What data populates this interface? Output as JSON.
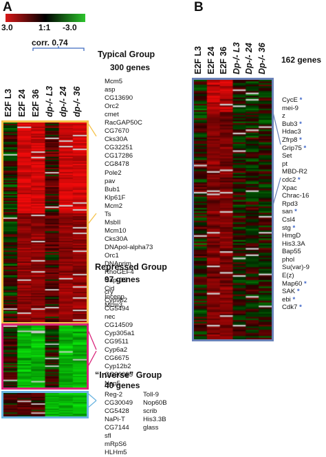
{
  "panels": {
    "a": "A",
    "b": "B"
  },
  "color_scale": {
    "left": "3.0",
    "mid": "1:1",
    "right": "-3.0",
    "colors": [
      "#d81818",
      "#000000",
      "#2cc42c"
    ]
  },
  "correlation": "corr. 0.74",
  "panel_a": {
    "columns": [
      {
        "label": "E2F L3",
        "italic": false
      },
      {
        "label": "E2F 24",
        "italic": false
      },
      {
        "label": "E2F 36",
        "italic": false
      },
      {
        "label": "dp-/- L3",
        "italic": true
      },
      {
        "label": "dp-/- 24",
        "italic": true
      },
      {
        "label": "dp-/- 36",
        "italic": true
      }
    ],
    "groups": [
      {
        "title": "Typical Group",
        "count": "300 genes",
        "border_color": "#f5c24a",
        "genes": [
          "Mcm5",
          "asp",
          "CG13690",
          "Orc2",
          "cmet",
          "RacGAP50C",
          "CG7670",
          "Cks30A",
          "CG32251",
          "CG17286",
          "CG8478",
          "Pole2",
          "pav",
          "Bub1",
          "Klp61F",
          "Mcm2",
          "Ts",
          "MsbII",
          "Mcm10",
          "Cks30A",
          "DNApol-alpha73",
          "Orc1",
          "DNAprim",
          "RhoGEF4",
          "Cap-D2",
          "Cid",
          "Incenp",
          "Mcm3"
        ]
      },
      {
        "title": "Repressed Group",
        "count": "97 genes",
        "border_color": "#d9247a",
        "genes": [
          "cry",
          "Cyp9b2",
          "CG5494",
          "nec",
          "CG14509",
          "Cyp305a1",
          "CG9511",
          "Cyp6a2",
          "CG6675",
          "Cyp12b2",
          "CG30095",
          "Nep5"
        ]
      },
      {
        "title": "“Inverse” Group",
        "count": "40 genes",
        "border_color": "#6ab4e0",
        "genes_col1": [
          "Reg-2",
          "CG30049",
          "CG5428",
          "NaPi-T",
          "CG7144",
          "sfl",
          "mRpS6",
          "HLHm5"
        ],
        "genes_col2": [
          "Toll-9",
          "Nop60B",
          "scrib",
          "His3.3B",
          "glass"
        ]
      }
    ]
  },
  "panel_b": {
    "columns": [
      {
        "label": "E2F L3",
        "italic": false
      },
      {
        "label": "E2F 24",
        "italic": false
      },
      {
        "label": "E2F 36",
        "italic": false
      },
      {
        "label": "Dp-/- L3",
        "italic": true
      },
      {
        "label": "Dp-/- 24",
        "italic": true
      },
      {
        "label": "Dp-/- 36",
        "italic": true
      }
    ],
    "count": "162 genes",
    "border_color": "#6a82b8",
    "genes": [
      {
        "name": "CycE",
        "star": true
      },
      {
        "name": "mei-9",
        "star": false
      },
      {
        "name": "z",
        "star": false
      },
      {
        "name": "Bub3",
        "star": true
      },
      {
        "name": "Hdac3",
        "star": false
      },
      {
        "name": "Zfrp8",
        "star": true
      },
      {
        "name": "Grip75",
        "star": true
      },
      {
        "name": "Set",
        "star": false
      },
      {
        "name": "pt",
        "star": false
      },
      {
        "name": "MBD-R2",
        "star": false
      },
      {
        "name": "cdc2",
        "star": true
      },
      {
        "name": "Xpac",
        "star": false
      },
      {
        "name": "Chrac-16",
        "star": false
      },
      {
        "name": "Rpd3",
        "star": false
      },
      {
        "name": "san",
        "star": true
      },
      {
        "name": "Csl4",
        "star": false
      },
      {
        "name": "stg",
        "star": true
      },
      {
        "name": "HmgD",
        "star": false
      },
      {
        "name": "His3.3A",
        "star": false
      },
      {
        "name": "Bap55",
        "star": false
      },
      {
        "name": "phol",
        "star": false
      },
      {
        "name": "Su(var)-9",
        "star": false
      },
      {
        "name": "E(z)",
        "star": false
      },
      {
        "name": "Map60",
        "star": true
      },
      {
        "name": "SAK",
        "star": true
      },
      {
        "name": "ebi",
        "star": true
      },
      {
        "name": "Cdk7",
        "star": true
      }
    ],
    "star_symbol": "*"
  }
}
